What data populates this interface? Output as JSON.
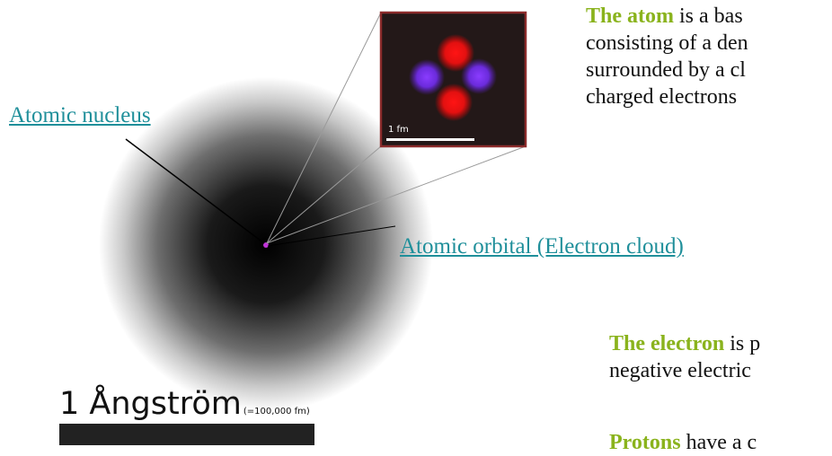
{
  "labels": {
    "nucleus": "Atomic nucleus",
    "orbital": "Atomic orbital (Electron cloud)"
  },
  "inset": {
    "scale_label": "1 fm"
  },
  "scale": {
    "main": "1 Ångström",
    "sub": "(=100,000 fm)"
  },
  "paragraphs": {
    "atom": {
      "highlight": "The atom",
      "line1": " is a bas",
      "line2": "consisting of a den",
      "line3": "surrounded by a cl",
      "line4": "charged electrons"
    },
    "electron": {
      "highlight": "The electron",
      "line1": " is p",
      "line2": "negative electric"
    },
    "protons": {
      "highlight": "Protons",
      "line1": " have a c"
    }
  },
  "colors": {
    "link": "#1f8f9a",
    "highlight": "#8ab31d",
    "inset_border": "#8b2b2b",
    "proton": "#ff1010",
    "neutron": "#7a2cf0"
  }
}
